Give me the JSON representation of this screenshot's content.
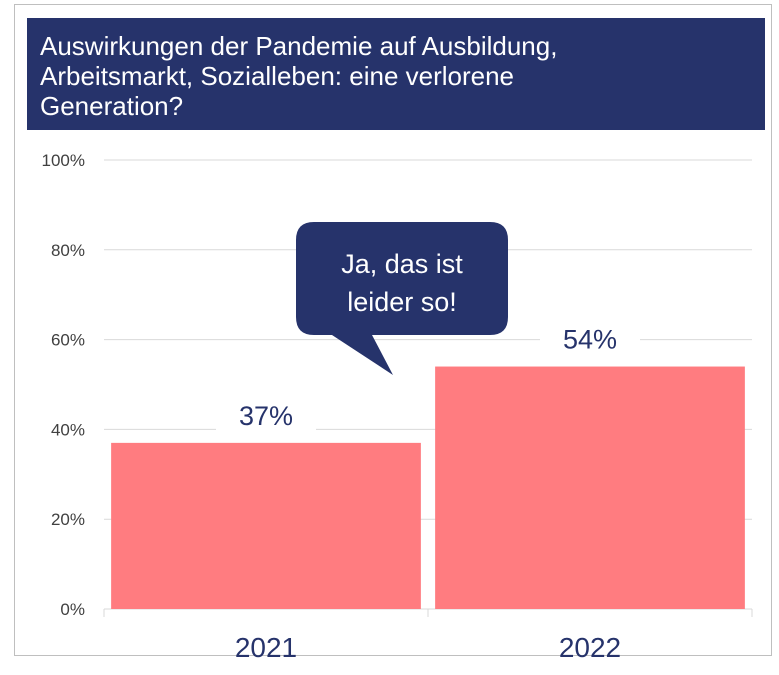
{
  "chart_data": {
    "type": "bar",
    "title": [
      "Auswirkungen der Pandemie auf Ausbildung,",
      "Arbeitsmarkt, Sozialleben: eine verlorene",
      "Generation?"
    ],
    "annotation": [
      "Ja, das ist",
      "leider so!"
    ],
    "categories": [
      "2021",
      "2022"
    ],
    "values": [
      37,
      54
    ],
    "value_labels": [
      "37%",
      "54%"
    ],
    "color": "#ff7c80",
    "ylim": [
      0,
      100
    ],
    "yticks": [
      {
        "value": 0,
        "label": "0%"
      },
      {
        "value": 20,
        "label": "20%"
      },
      {
        "value": 40,
        "label": "40%"
      },
      {
        "value": 60,
        "label": "60%"
      },
      {
        "value": 80,
        "label": "80%"
      },
      {
        "value": 100,
        "label": "100%"
      }
    ],
    "grid": true
  }
}
